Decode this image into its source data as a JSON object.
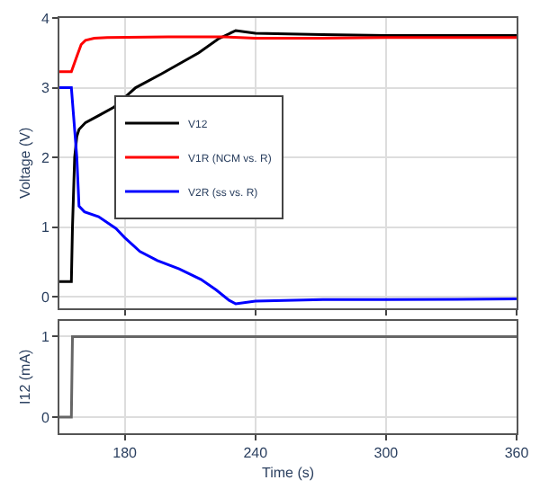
{
  "chart_data": [
    {
      "type": "line",
      "ylabel": "Voltage (V)",
      "xlim": [
        150,
        360
      ],
      "xticks": [
        180,
        240,
        300,
        360
      ],
      "ylim": [
        -0.16,
        4
      ],
      "yticks": [
        0,
        1,
        2,
        3,
        4
      ],
      "grid": true,
      "legend": "left",
      "tick_labels": "y",
      "marker": "none",
      "line_style": "solid",
      "series": [
        {
          "name": "V12",
          "color": "#000000",
          "x": [
            150,
            155.5,
            156,
            157,
            158,
            159,
            162,
            168,
            175,
            185,
            197,
            214,
            223,
            231,
            240,
            255,
            271,
            300,
            360
          ],
          "values": [
            0.22,
            0.22,
            1.0,
            2.0,
            2.3,
            2.4,
            2.5,
            2.6,
            2.72,
            3.0,
            3.2,
            3.5,
            3.7,
            3.82,
            3.78,
            3.77,
            3.76,
            3.75,
            3.75
          ]
        },
        {
          "name": "V1R (NCM vs. R)",
          "color": "#ff0000",
          "x": [
            150,
            155.5,
            158,
            160,
            162,
            166,
            172,
            200,
            225,
            240,
            270,
            300,
            360
          ],
          "values": [
            3.23,
            3.23,
            3.45,
            3.62,
            3.68,
            3.71,
            3.72,
            3.73,
            3.73,
            3.71,
            3.71,
            3.72,
            3.72
          ]
        },
        {
          "name": "V2R (ss vs. R)",
          "color": "#0000ff",
          "x": [
            150,
            155.5,
            156.5,
            158,
            159,
            161.5,
            168,
            176,
            180,
            187,
            195,
            205,
            215,
            222,
            228,
            231,
            240,
            271,
            300,
            360
          ],
          "values": [
            3.0,
            3.0,
            2.6,
            2.0,
            1.3,
            1.22,
            1.15,
            0.98,
            0.85,
            0.65,
            0.52,
            0.4,
            0.25,
            0.1,
            -0.05,
            -0.1,
            -0.06,
            -0.04,
            -0.04,
            -0.03
          ]
        }
      ]
    },
    {
      "type": "line",
      "xlabel": "Time (s)",
      "ylabel": "I12 (mA)",
      "xlim": [
        150,
        360
      ],
      "xticks": [
        180,
        240,
        300,
        360
      ],
      "ylim": [
        -0.2,
        1.2
      ],
      "yticks": [
        0,
        1
      ],
      "grid": true,
      "marker": "none",
      "line_style": "solid",
      "series": [
        {
          "color": "#666666",
          "x": [
            150,
            155.5,
            156,
            360
          ],
          "values": [
            0,
            0,
            1,
            1
          ]
        }
      ]
    }
  ]
}
